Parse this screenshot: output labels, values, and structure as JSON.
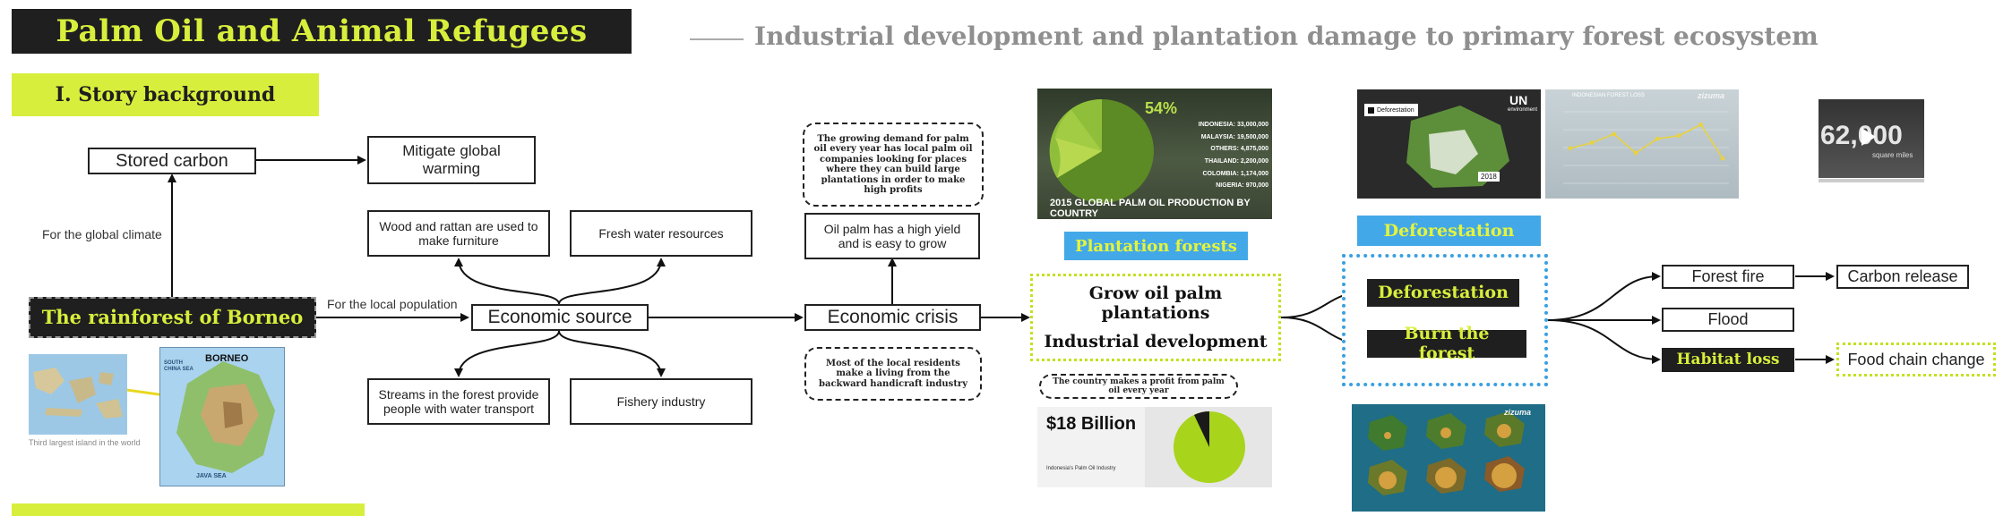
{
  "header": {
    "title": "Palm Oil and Animal Refugees",
    "subtitle": "Industrial development and plantation damage to primary forest ecosystem",
    "section_1": "I. Story background"
  },
  "nodes": {
    "stored_carbon": "Stored carbon",
    "mitigate": "Mitigate global warming",
    "rainforest": "The rainforest of Borneo",
    "wood_rattan": "Wood and rattan are used to make furniture",
    "fresh_water": "Fresh water resources",
    "economic_source": "Economic source",
    "streams": "Streams in the forest provide people with water transport",
    "fishery": "Fishery industry",
    "demand_note": "The growing demand for palm oil every year has local palm oil companies looking for places where they can build large plantations in order to make high profits",
    "oil_palm": "Oil palm has a high yield and is easy to grow",
    "economic_crisis": "Economic crisis",
    "residents_note": "Most of the local residents make a living from the backward handicraft industry",
    "plantation_forests": "Plantation forests",
    "grow_oil_palm": "Grow oil palm plantations",
    "plus": "+",
    "industrial_dev": "Industrial development",
    "country_profit": "The country makes a profit from palm oil every year",
    "deforestation_tag": "Deforestation",
    "deforestation": "Deforestation",
    "burn_forest": "Burn the forest",
    "forest_fire": "Forest fire",
    "carbon_release": "Carbon release",
    "flood": "Flood",
    "habitat_loss": "Habitat loss",
    "food_chain": "Food chain change"
  },
  "edge_labels": {
    "global_climate": "For the global climate",
    "local_population": "For the local population"
  },
  "images": {
    "borneo_label": "BORNEO",
    "south_china_sea": "SOUTH CHINA SEA",
    "java_sea": "JAVA SEA",
    "map_caption": "Third largest island in the world",
    "pie_percent": "54%",
    "pie_title": "2015 GLOBAL PALM OIL PRODUCTION BY COUNTRY",
    "pie_rows": [
      "INDONESIA: 33,000,000",
      "MALAYSIA: 19,500,000",
      "OTHERS: 4,875,000",
      "THAILAND: 2,200,000",
      "COLOMBIA: 1,174,000",
      "NIGERIA: 970,000"
    ],
    "profit_amount": "$18 Billion",
    "profit_caption": "Indonesia's Palm Oil Industry",
    "un_logo": "UN",
    "un_sub": "environment",
    "legend_deforestation": "Deforestation",
    "map_year": "2018",
    "zizuma_1": "zizuma",
    "zizuma_2": "zizuma",
    "forest_loss_title": "INDONESIAN FOREST LOSS",
    "video_number": "62,000",
    "video_unit": "square miles"
  },
  "chart_data": {
    "type": "line",
    "title": "INDONESIAN FOREST LOSS",
    "values": [
      48,
      55,
      66,
      42,
      60,
      64,
      78,
      35
    ],
    "ylim": [
      0,
      100
    ],
    "grid": true
  },
  "colors": {
    "accent": "#d8ee3c",
    "dark": "#1f1f1f",
    "blue_tag": "#43a8e8",
    "dotted_green": "#c5e020",
    "dotted_blue": "#3aa0e0"
  }
}
